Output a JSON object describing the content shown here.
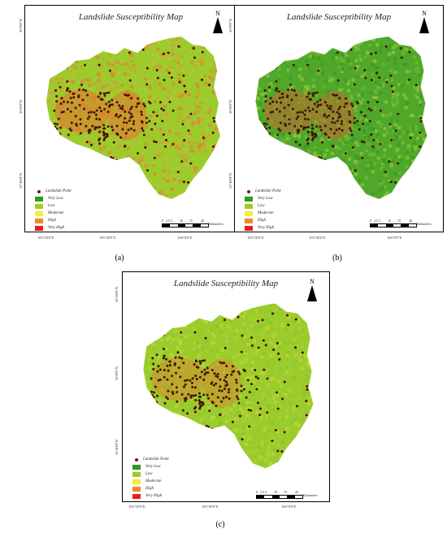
{
  "panels": [
    {
      "title": "Landslide Susceptibility Map",
      "north": "N",
      "caption": "(a)",
      "y_labels": [
        "36°0'0\"N",
        "36°0'0\"N",
        "35°40'0\"N"
      ],
      "x_labels": [
        "105°20'0\"E",
        "105°40'0\"E",
        "106°0'0\"E"
      ],
      "legend": {
        "point_label": "Landslide Point",
        "classes": [
          {
            "label": "Very Low",
            "color": "#2e9a1e"
          },
          {
            "label": "Low",
            "color": "#9ccc2c"
          },
          {
            "label": "Moderate",
            "color": "#f3ee3a"
          },
          {
            "label": "High",
            "color": "#ee8a2c"
          },
          {
            "label": "Very High",
            "color": "#e41e1e"
          }
        ]
      },
      "scale": {
        "ticks": [
          "0",
          "2.5",
          "5",
          "10",
          "15",
          "20"
        ],
        "unit": "Kilometres"
      },
      "tone": "red"
    },
    {
      "title": "Landslide Susceptibility Map",
      "north": "N",
      "caption": "(b)",
      "y_labels": [
        "36°0'0\"N",
        "36°0'0\"N",
        "35°40'0\"N"
      ],
      "x_labels": [
        "105°20'0\"E",
        "105°40'0\"E",
        "106°0'0\"E"
      ],
      "legend": {
        "point_label": "Landslide Point",
        "classes": [
          {
            "label": "Very Low",
            "color": "#2e9a1e"
          },
          {
            "label": "Low",
            "color": "#9ccc2c"
          },
          {
            "label": "Moderate",
            "color": "#f3ee3a"
          },
          {
            "label": "High",
            "color": "#ee8a2c"
          },
          {
            "label": "Very High",
            "color": "#e41e1e"
          }
        ]
      },
      "scale": {
        "ticks": [
          "0",
          "2.5",
          "5",
          "10",
          "15",
          "20"
        ],
        "unit": "Kilometres"
      },
      "tone": "green"
    },
    {
      "title": "Landslide Susceptibility Map",
      "north": "N",
      "caption": "(c)",
      "y_labels": [
        "36°20'0\"N",
        "36°0'0\"N",
        "35°40'0\"N"
      ],
      "x_labels": [
        "105°20'0\"E",
        "105°40'0\"E",
        "106°0'0\"E"
      ],
      "legend": {
        "point_label": "Landslide Point",
        "classes": [
          {
            "label": "Very Low",
            "color": "#2e9a1e"
          },
          {
            "label": "Low",
            "color": "#9ccc2c"
          },
          {
            "label": "Moderate",
            "color": "#f3ee3a"
          },
          {
            "label": "High",
            "color": "#ee8a2c"
          },
          {
            "label": "Very High",
            "color": "#e41e1e"
          }
        ]
      },
      "scale": {
        "ticks": [
          "0",
          "2.5",
          "5",
          "10",
          "15",
          "20"
        ],
        "unit": "Kilometres"
      },
      "tone": "lime"
    }
  ]
}
